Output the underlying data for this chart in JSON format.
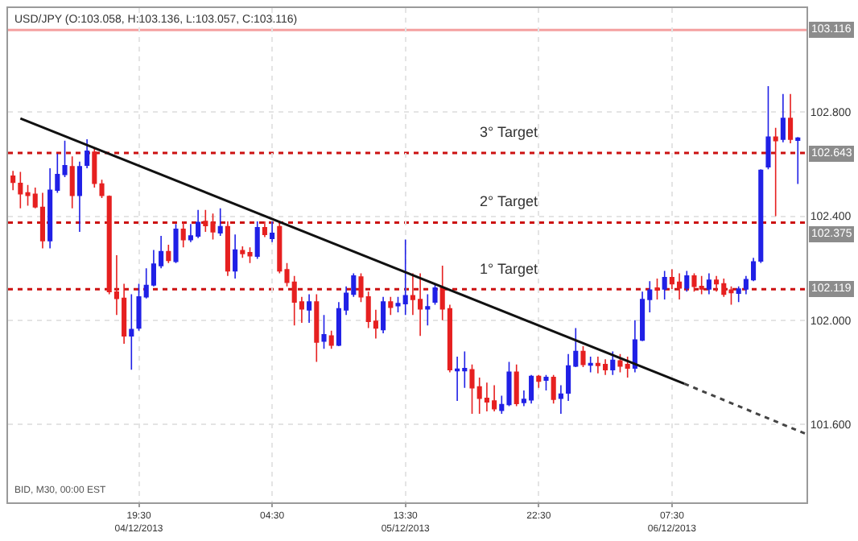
{
  "chart_data": {
    "type": "candlestick",
    "title": "USD/JPY (O:103.058, H:103.136, L:103.057, C:103.116)",
    "annotations": [
      "BID, M30, 00:00 EST",
      {
        "text": "3° Target",
        "x": "2013-12-05T20:30",
        "y": 102.643
      },
      {
        "text": "2° Target",
        "x": "2013-12-05T20:30",
        "y": 102.375
      },
      {
        "text": "1° Target",
        "x": "2013-12-05T20:30",
        "y": 102.119
      }
    ],
    "series": [
      {
        "colors": [
          "#e62020",
          "#e62020",
          "#e62020",
          "#e62020",
          "#e62020",
          "#2020e6",
          "#2020e6",
          "#2020e6",
          "#e62020",
          "#2020e6",
          "#2020e6",
          "#e62020",
          "#e62020",
          "#e62020",
          "#e62020",
          "#e62020",
          "#2020e6",
          "#2020e6",
          "#2020e6",
          "#2020e6",
          "#2020e6",
          "#e62020",
          "#2020e6",
          "#e62020",
          "#2020e6",
          "#2020e6",
          "#e62020",
          "#e62020",
          "#2020e6",
          "#e62020",
          "#2020e6",
          "#e62020",
          "#e62020",
          "#2020e6",
          "#e62020",
          "#2020e6",
          "#e62020",
          "#e62020",
          "#e62020",
          "#e62020",
          "#2020e6",
          "#e62020",
          "#2020e6",
          "#e62020",
          "#2020e6",
          "#2020e6",
          "#2020e6",
          "#e62020",
          "#e62020",
          "#e62020",
          "#2020e6",
          "#e62020",
          "#2020e6",
          "#2020e6",
          "#e62020",
          "#e62020",
          "#2020e6",
          "#2020e6",
          "#e62020",
          "#e62020",
          "#2020e6",
          "#2020e6",
          "#e62020",
          "#e62020",
          "#e62020",
          "#e62020",
          "#2020e6",
          "#2020e6",
          "#e62020",
          "#2020e6",
          "#2020e6",
          "#e62020",
          "#2020e6",
          "#e62020",
          "#2020e6",
          "#2020e6",
          "#2020e6",
          "#e62020",
          "#2020e6",
          "#e62020",
          "#e62020",
          "#2020e6",
          "#e62020",
          "#e62020",
          "#2020e6",
          "#2020e6",
          "#2020e6",
          "#e62020",
          "#2020e6",
          "#e62020",
          "#e62020",
          "#2020e6",
          "#e62020",
          "#e62020",
          "#2020e6",
          "#e62020",
          "#e62020",
          "#e62020",
          "#2020e6",
          "#2020e6",
          "#2020e6",
          "#2020e6",
          "#2020e6",
          "#e62020",
          "#2020e6",
          "#e62020",
          "#2020e6"
        ],
        "x": [
          "2013-12-04T11:00",
          "2013-12-04T11:30",
          "2013-12-04T12:00",
          "2013-12-04T12:30",
          "2013-12-04T13:00",
          "2013-12-04T13:30",
          "2013-12-04T14:00",
          "2013-12-04T14:30",
          "2013-12-04T15:00",
          "2013-12-04T15:30",
          "2013-12-04T16:00",
          "2013-12-04T16:30",
          "2013-12-04T17:00",
          "2013-12-04T17:30",
          "2013-12-04T18:00",
          "2013-12-04T18:30",
          "2013-12-04T19:00",
          "2013-12-04T19:30",
          "2013-12-04T20:00",
          "2013-12-04T20:30",
          "2013-12-04T21:00",
          "2013-12-04T21:30",
          "2013-12-04T22:00",
          "2013-12-04T22:30",
          "2013-12-04T23:00",
          "2013-12-04T23:30",
          "2013-12-05T00:00",
          "2013-12-05T00:30",
          "2013-12-05T01:00",
          "2013-12-05T01:30",
          "2013-12-05T02:00",
          "2013-12-05T02:30",
          "2013-12-05T03:00",
          "2013-12-05T03:30",
          "2013-12-05T04:00",
          "2013-12-05T04:30",
          "2013-12-05T05:00",
          "2013-12-05T05:30",
          "2013-12-05T06:00",
          "2013-12-05T06:30",
          "2013-12-05T07:00",
          "2013-12-05T07:30",
          "2013-12-05T08:00",
          "2013-12-05T08:30",
          "2013-12-05T09:00",
          "2013-12-05T09:30",
          "2013-12-05T10:00",
          "2013-12-05T10:30",
          "2013-12-05T11:00",
          "2013-12-05T11:30",
          "2013-12-05T12:00",
          "2013-12-05T12:30",
          "2013-12-05T13:00",
          "2013-12-05T13:30",
          "2013-12-05T14:00",
          "2013-12-05T14:30",
          "2013-12-05T15:00",
          "2013-12-05T15:30",
          "2013-12-05T16:00",
          "2013-12-05T16:30",
          "2013-12-05T17:00",
          "2013-12-05T17:30",
          "2013-12-05T18:00",
          "2013-12-05T18:30",
          "2013-12-05T19:00",
          "2013-12-05T19:30",
          "2013-12-05T20:00",
          "2013-12-05T20:30",
          "2013-12-05T21:00",
          "2013-12-05T21:30",
          "2013-12-05T22:00",
          "2013-12-05T22:30",
          "2013-12-05T23:00",
          "2013-12-05T23:30",
          "2013-12-06T00:00",
          "2013-12-06T00:30",
          "2013-12-06T01:00",
          "2013-12-06T01:30",
          "2013-12-06T02:00",
          "2013-12-06T02:30",
          "2013-12-06T03:00",
          "2013-12-06T03:30",
          "2013-12-06T04:00",
          "2013-12-06T04:30",
          "2013-12-06T05:00",
          "2013-12-06T05:30",
          "2013-12-06T06:00",
          "2013-12-06T06:30",
          "2013-12-06T07:00",
          "2013-12-06T07:30",
          "2013-12-06T08:00",
          "2013-12-06T08:30",
          "2013-12-06T09:00",
          "2013-12-06T09:30",
          "2013-12-06T10:00",
          "2013-12-06T10:30",
          "2013-12-06T11:00",
          "2013-12-06T11:30",
          "2013-12-06T12:00",
          "2013-12-06T12:30",
          "2013-12-06T13:00",
          "2013-12-06T13:30",
          "2013-12-06T14:00",
          "2013-12-06T14:30",
          "2013-12-06T15:00",
          "2013-12-06T15:30",
          "2013-12-06T16:00"
        ],
        "ohlc": [
          [
            102.554,
            102.574,
            102.5,
            102.53
          ],
          [
            102.526,
            102.57,
            102.43,
            102.486
          ],
          [
            102.49,
            102.52,
            102.44,
            102.48
          ],
          [
            102.484,
            102.51,
            102.43,
            102.436
          ],
          [
            102.434,
            102.49,
            102.276,
            102.306
          ],
          [
            102.306,
            102.584,
            102.276,
            102.5
          ],
          [
            102.5,
            102.64,
            102.49,
            102.56
          ],
          [
            102.56,
            102.69,
            102.55,
            102.594
          ],
          [
            102.59,
            102.63,
            102.43,
            102.48
          ],
          [
            102.48,
            102.61,
            102.34,
            102.59
          ],
          [
            102.596,
            102.696,
            102.584,
            102.65
          ],
          [
            102.646,
            102.66,
            102.51,
            102.526
          ],
          [
            102.524,
            102.54,
            102.47,
            102.48
          ],
          [
            102.476,
            102.48,
            102.1,
            102.11
          ],
          [
            102.108,
            102.25,
            102.02,
            102.084
          ],
          [
            102.084,
            102.14,
            101.91,
            101.94
          ],
          [
            101.94,
            102.1,
            101.81,
            101.964
          ],
          [
            101.97,
            102.14,
            101.96,
            102.09
          ],
          [
            102.09,
            102.2,
            102.084,
            102.134
          ],
          [
            102.136,
            102.27,
            102.13,
            102.216
          ],
          [
            102.21,
            102.324,
            102.2,
            102.264
          ],
          [
            102.264,
            102.29,
            102.22,
            102.23
          ],
          [
            102.226,
            102.37,
            102.22,
            102.35
          ],
          [
            102.35,
            102.38,
            102.28,
            102.31
          ],
          [
            102.31,
            102.37,
            102.3,
            102.324
          ],
          [
            102.324,
            102.424,
            102.316,
            102.376
          ],
          [
            102.38,
            102.424,
            102.34,
            102.364
          ],
          [
            102.376,
            102.41,
            102.31,
            102.34
          ],
          [
            102.336,
            102.43,
            102.324,
            102.36
          ],
          [
            102.36,
            102.38,
            102.17,
            102.19
          ],
          [
            102.19,
            102.33,
            102.16,
            102.27
          ],
          [
            102.268,
            102.284,
            102.24,
            102.256
          ],
          [
            102.26,
            102.28,
            102.22,
            102.248
          ],
          [
            102.246,
            102.38,
            102.236,
            102.356
          ],
          [
            102.356,
            102.38,
            102.32,
            102.33
          ],
          [
            102.314,
            102.38,
            102.3,
            102.334
          ],
          [
            102.36,
            102.38,
            102.18,
            102.19
          ],
          [
            102.194,
            102.22,
            102.13,
            102.146
          ],
          [
            102.146,
            102.17,
            101.98,
            102.07
          ],
          [
            102.07,
            102.09,
            101.99,
            102.044
          ],
          [
            102.04,
            102.1,
            101.99,
            102.07
          ],
          [
            102.07,
            102.1,
            101.84,
            101.916
          ],
          [
            101.92,
            102.02,
            101.89,
            101.944
          ],
          [
            101.94,
            101.96,
            101.89,
            101.904
          ],
          [
            101.904,
            102.07,
            101.9,
            102.044
          ],
          [
            102.04,
            102.13,
            102.02,
            102.104
          ],
          [
            102.1,
            102.18,
            102.09,
            102.17
          ],
          [
            102.166,
            102.18,
            102.07,
            102.09
          ],
          [
            102.09,
            102.11,
            101.97,
            101.996
          ],
          [
            101.996,
            102.04,
            101.93,
            101.97
          ],
          [
            101.964,
            102.09,
            101.95,
            102.07
          ],
          [
            102.07,
            102.09,
            102.02,
            102.05
          ],
          [
            102.056,
            102.09,
            102.03,
            102.064
          ],
          [
            102.064,
            102.31,
            102.02,
            102.094
          ],
          [
            102.094,
            102.18,
            102.02,
            102.08
          ],
          [
            102.08,
            102.18,
            101.94,
            102.044
          ],
          [
            102.044,
            102.1,
            101.98,
            102.052
          ],
          [
            102.07,
            102.14,
            102.06,
            102.124
          ],
          [
            102.124,
            102.21,
            102.0,
            102.044
          ],
          [
            102.044,
            102.06,
            101.8,
            101.81
          ],
          [
            101.806,
            101.86,
            101.69,
            101.812
          ],
          [
            101.806,
            101.88,
            101.74,
            101.814
          ],
          [
            101.81,
            101.83,
            101.64,
            101.74
          ],
          [
            101.744,
            101.78,
            101.64,
            101.7
          ],
          [
            101.7,
            101.76,
            101.65,
            101.686
          ],
          [
            101.69,
            101.75,
            101.65,
            101.66
          ],
          [
            101.654,
            101.71,
            101.64,
            101.676
          ],
          [
            101.676,
            101.84,
            101.67,
            101.8
          ],
          [
            101.8,
            101.83,
            101.67,
            101.68
          ],
          [
            101.684,
            101.73,
            101.67,
            101.696
          ],
          [
            101.694,
            101.79,
            101.68,
            101.784
          ],
          [
            101.784,
            101.79,
            101.74,
            101.766
          ],
          [
            101.77,
            101.79,
            101.73,
            101.78
          ],
          [
            101.78,
            101.79,
            101.68,
            101.696
          ],
          [
            101.7,
            101.75,
            101.64,
            101.716
          ],
          [
            101.72,
            101.87,
            101.69,
            101.824
          ],
          [
            101.824,
            101.97,
            101.82,
            101.88
          ],
          [
            101.88,
            101.9,
            101.82,
            101.83
          ],
          [
            101.828,
            101.86,
            101.8,
            101.834
          ],
          [
            101.834,
            101.86,
            101.796,
            101.826
          ],
          [
            101.83,
            101.85,
            101.79,
            101.81
          ],
          [
            101.81,
            101.88,
            101.79,
            101.846
          ],
          [
            101.844,
            101.87,
            101.8,
            101.824
          ],
          [
            101.83,
            101.86,
            101.78,
            101.816
          ],
          [
            101.816,
            102.0,
            101.8,
            101.924
          ],
          [
            101.924,
            102.11,
            101.92,
            102.08
          ],
          [
            102.08,
            102.15,
            102.03,
            102.116
          ],
          [
            102.124,
            102.16,
            102.08,
            102.116
          ],
          [
            102.12,
            102.19,
            102.08,
            102.164
          ],
          [
            102.164,
            102.196,
            102.12,
            102.14
          ],
          [
            102.146,
            102.18,
            102.08,
            102.124
          ],
          [
            102.124,
            102.19,
            102.11,
            102.17
          ],
          [
            102.17,
            102.18,
            102.11,
            102.13
          ],
          [
            102.13,
            102.17,
            102.1,
            102.12
          ],
          [
            102.12,
            102.18,
            102.1,
            102.154
          ],
          [
            102.154,
            102.17,
            102.11,
            102.14
          ],
          [
            102.14,
            102.16,
            102.09,
            102.1
          ],
          [
            102.116,
            102.13,
            102.06,
            102.106
          ],
          [
            102.104,
            102.13,
            102.07,
            102.12
          ],
          [
            102.12,
            102.17,
            102.1,
            102.156
          ],
          [
            102.156,
            102.24,
            102.15,
            102.224
          ],
          [
            102.228,
            102.58,
            102.22,
            102.576
          ],
          [
            102.59,
            102.9,
            102.58,
            102.704
          ],
          [
            102.704,
            102.74,
            102.4,
            102.69
          ],
          [
            102.696,
            102.87,
            102.684,
            102.776
          ],
          [
            102.776,
            102.87,
            102.68,
            102.696
          ],
          [
            102.692,
            102.704,
            102.524,
            102.7
          ]
        ]
      },
      {
        "type": "line",
        "color": "#111111",
        "line_style": "solid",
        "x": [
          "2013-12-04T11:30",
          "2013-12-06T08:20"
        ],
        "values": [
          102.776,
          101.756
        ]
      },
      {
        "type": "line",
        "color": "#444444",
        "line_style": "dotted",
        "x": [
          "2013-12-06T08:20",
          "2013-12-06T16:30"
        ],
        "values": [
          101.756,
          101.564
        ]
      }
    ],
    "ref_lines": [
      {
        "axis": "y",
        "value": 103.116,
        "label": "103.116",
        "color": "#f4a0a0",
        "line_style": "solid"
      },
      {
        "axis": "y",
        "value": 102.643,
        "label": "102.643",
        "color": "#cc1111",
        "line_style": "dotted"
      },
      {
        "axis": "y",
        "value": 102.375,
        "label": "102.375",
        "color": "#cc1111",
        "line_style": "dotted"
      },
      {
        "axis": "y",
        "value": 102.119,
        "label": "102.119",
        "color": "#cc1111",
        "line_style": "dotted"
      }
    ],
    "xlim": [
      "2013-12-04T10:40",
      "2013-12-06T16:35"
    ],
    "xticks": [
      {
        "value": "2013-12-04T19:30",
        "label": "19:30\n04/12/2013"
      },
      {
        "value": "2013-12-05T04:30",
        "label": "04:30"
      },
      {
        "value": "2013-12-05T13:30",
        "label": "13:30\n05/12/2013"
      },
      {
        "value": "2013-12-05T22:30",
        "label": "22:30"
      },
      {
        "value": "2013-12-06T07:30",
        "label": "07:30\n06/12/2013"
      }
    ],
    "ylim": [
      101.3,
      103.2
    ],
    "yticks": [
      {
        "value": 101.6,
        "label": "101.600"
      },
      {
        "value": 102.0,
        "label": "102.000"
      },
      {
        "value": 102.4,
        "label": "102.400"
      },
      {
        "value": 102.8,
        "label": "102.800"
      }
    ],
    "grid": true
  }
}
